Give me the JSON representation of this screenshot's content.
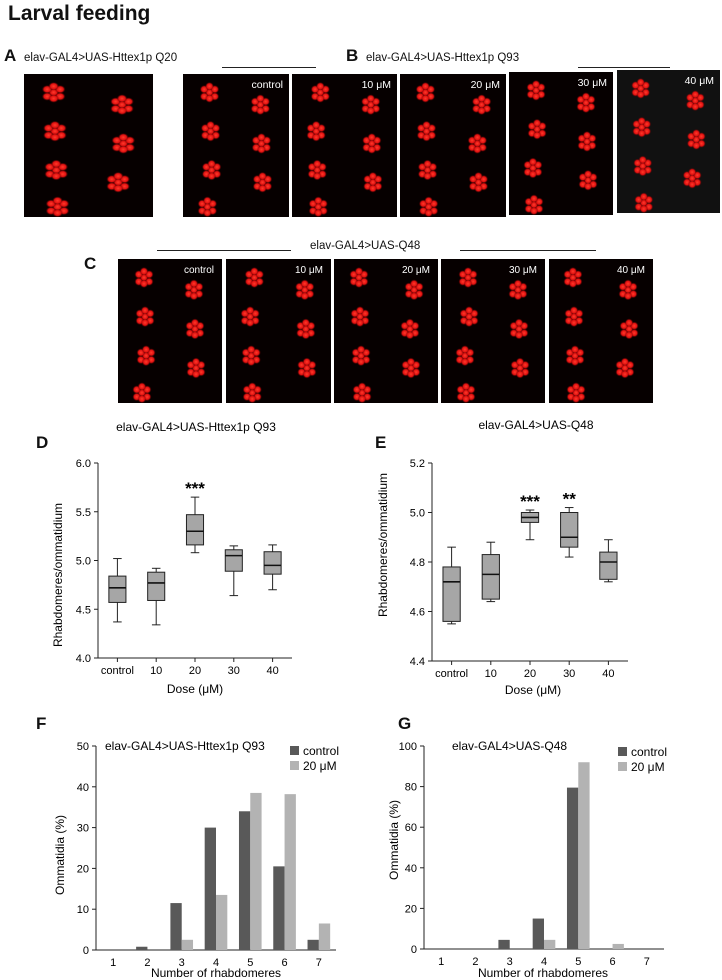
{
  "title": "Larval feeding",
  "panels": {
    "A": {
      "label": "A",
      "genotype": "elav-GAL4>UAS-Httex1p Q20"
    },
    "B": {
      "label": "B",
      "genotype": "elav-GAL4>UAS-Httex1p Q93",
      "images": [
        "control",
        "10 μM",
        "20 μM",
        "30 μM",
        "40 μM"
      ]
    },
    "C": {
      "label": "C",
      "genotype": "elav-GAL4>UAS-Q48",
      "images": [
        "control",
        "10 μM",
        "20 μM",
        "30 μM",
        "40 μM"
      ]
    },
    "D": {
      "label": "D"
    },
    "E": {
      "label": "E"
    },
    "F": {
      "label": "F"
    },
    "G": {
      "label": "G"
    }
  },
  "chart_data": [
    {
      "id": "D",
      "type": "box",
      "title": "elav-GAL4>UAS-Httex1p Q93",
      "xlabel": "Dose (μM)",
      "ylabel": "Rhabdomeres/ommatidium",
      "categories": [
        "control",
        "10",
        "20",
        "30",
        "40"
      ],
      "ylim": [
        4.0,
        6.0
      ],
      "yticks": [
        "4.0",
        "4.5",
        "5.0",
        "5.5",
        "6.0"
      ],
      "boxes": [
        {
          "min": 4.37,
          "q1": 4.57,
          "median": 4.72,
          "q3": 4.84,
          "max": 5.02
        },
        {
          "min": 4.34,
          "q1": 4.59,
          "median": 4.77,
          "q3": 4.88,
          "max": 4.92
        },
        {
          "min": 5.08,
          "q1": 5.16,
          "median": 5.3,
          "q3": 5.47,
          "max": 5.65
        },
        {
          "min": 4.64,
          "q1": 4.89,
          "median": 5.05,
          "q3": 5.11,
          "max": 5.15
        },
        {
          "min": 4.7,
          "q1": 4.86,
          "median": 4.95,
          "q3": 5.09,
          "max": 5.16
        }
      ],
      "significance": [
        "",
        "",
        "***",
        "",
        ""
      ]
    },
    {
      "id": "E",
      "type": "box",
      "title": "elav-GAL4>UAS-Q48",
      "xlabel": "Dose (μM)",
      "ylabel": "Rhabdomeres/ommatidium",
      "categories": [
        "control",
        "10",
        "20",
        "30",
        "40"
      ],
      "ylim": [
        4.4,
        5.2
      ],
      "yticks": [
        "4.4",
        "4.6",
        "4.8",
        "5.0",
        "5.2"
      ],
      "boxes": [
        {
          "min": 4.55,
          "q1": 4.56,
          "median": 4.72,
          "q3": 4.78,
          "max": 4.86
        },
        {
          "min": 4.64,
          "q1": 4.65,
          "median": 4.75,
          "q3": 4.83,
          "max": 4.88
        },
        {
          "min": 4.89,
          "q1": 4.96,
          "median": 4.98,
          "q3": 5.0,
          "max": 5.01
        },
        {
          "min": 4.82,
          "q1": 4.86,
          "median": 4.9,
          "q3": 5.0,
          "max": 5.02
        },
        {
          "min": 4.72,
          "q1": 4.73,
          "median": 4.8,
          "q3": 4.84,
          "max": 4.89
        }
      ],
      "significance": [
        "",
        "",
        "***",
        "**",
        ""
      ]
    },
    {
      "id": "F",
      "type": "bar",
      "title": "elav-GAL4>UAS-Httex1p Q93",
      "xlabel": "Number of rhabdomeres",
      "ylabel": "Ommatidia (%)",
      "categories": [
        "1",
        "2",
        "3",
        "4",
        "5",
        "6",
        "7"
      ],
      "ylim": [
        0,
        50
      ],
      "yticks": [
        "0",
        "10",
        "20",
        "30",
        "40",
        "50"
      ],
      "series": [
        {
          "name": "control",
          "color": "#595959",
          "values": [
            0,
            0.8,
            11.5,
            30,
            34,
            20.5,
            2.5
          ]
        },
        {
          "name": "20 μM",
          "color": "#b3b3b3",
          "values": [
            0,
            0,
            2.5,
            13.5,
            38.5,
            38.2,
            6.5
          ]
        }
      ]
    },
    {
      "id": "G",
      "type": "bar",
      "title": "elav-GAL4>UAS-Q48",
      "xlabel": "Number of rhabdomeres",
      "ylabel": "Ommatidia (%)",
      "categories": [
        "1",
        "2",
        "3",
        "4",
        "5",
        "6",
        "7"
      ],
      "ylim": [
        0,
        100
      ],
      "yticks": [
        "0",
        "20",
        "40",
        "60",
        "80",
        "100"
      ],
      "series": [
        {
          "name": "control",
          "color": "#595959",
          "values": [
            0,
            0,
            4.5,
            15,
            79.5,
            0,
            0
          ]
        },
        {
          "name": "20 μM",
          "color": "#b3b3b3",
          "values": [
            0,
            0,
            0,
            4.5,
            92,
            2.5,
            0
          ]
        }
      ]
    }
  ]
}
